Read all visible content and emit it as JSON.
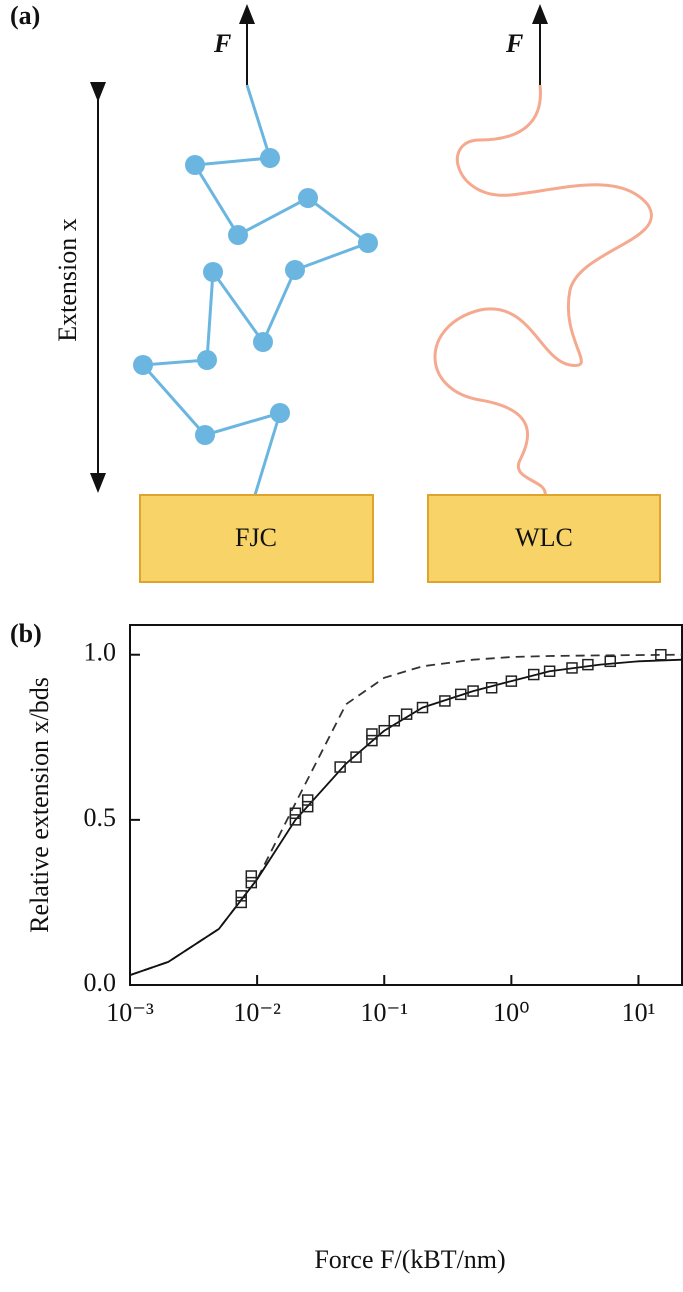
{
  "diagram": {
    "panel_label": "(a)",
    "force_labels": [
      "F",
      "F"
    ],
    "extension_label": "Extension x",
    "boxes": [
      "FJC",
      "WLC"
    ]
  },
  "chart_data": {
    "type": "line",
    "panel_label": "(b)",
    "x_label": "Force F/(kBT/nm)",
    "y_label": "Relative extension x/bds",
    "xscale": "log",
    "xlim": [
      0.001,
      22
    ],
    "ylim": [
      0,
      1.09
    ],
    "xticks": [
      {
        "value": 0.001,
        "label": "10⁻³"
      },
      {
        "value": 0.01,
        "label": "10⁻²"
      },
      {
        "value": 0.1,
        "label": "10⁻¹"
      },
      {
        "value": 1,
        "label": "10⁰"
      },
      {
        "value": 10,
        "label": "10¹"
      }
    ],
    "yticks": [
      {
        "value": 0,
        "label": "0.0"
      },
      {
        "value": 0.5,
        "label": "0.5"
      },
      {
        "value": 1,
        "label": "1.0"
      }
    ],
    "series": [
      {
        "style": "dashed",
        "color": "#333333",
        "x": [
          0.001,
          0.002,
          0.005,
          0.01,
          0.02,
          0.05,
          0.1,
          0.2,
          0.5,
          1,
          2,
          5,
          22
        ],
        "values": [
          0.03,
          0.07,
          0.17,
          0.32,
          0.55,
          0.85,
          0.93,
          0.965,
          0.985,
          0.993,
          0.996,
          0.998,
          1.0
        ]
      },
      {
        "style": "solid",
        "color": "#111111",
        "x": [
          0.001,
          0.002,
          0.005,
          0.01,
          0.02,
          0.05,
          0.1,
          0.2,
          0.5,
          1,
          2,
          5,
          10,
          22
        ],
        "values": [
          0.03,
          0.07,
          0.17,
          0.32,
          0.5,
          0.67,
          0.77,
          0.84,
          0.89,
          0.92,
          0.95,
          0.97,
          0.98,
          0.985
        ]
      },
      {
        "style": "markers",
        "color": "#222222",
        "x": [
          0.0075,
          0.0075,
          0.009,
          0.009,
          0.02,
          0.02,
          0.025,
          0.025,
          0.045,
          0.06,
          0.08,
          0.08,
          0.1,
          0.12,
          0.15,
          0.2,
          0.3,
          0.4,
          0.5,
          0.7,
          1,
          1.5,
          2,
          3,
          4,
          6,
          15
        ],
        "values": [
          0.25,
          0.27,
          0.31,
          0.33,
          0.5,
          0.52,
          0.54,
          0.56,
          0.66,
          0.69,
          0.74,
          0.76,
          0.77,
          0.8,
          0.82,
          0.84,
          0.86,
          0.88,
          0.89,
          0.9,
          0.92,
          0.94,
          0.95,
          0.96,
          0.97,
          0.98,
          1.0
        ]
      }
    ]
  }
}
